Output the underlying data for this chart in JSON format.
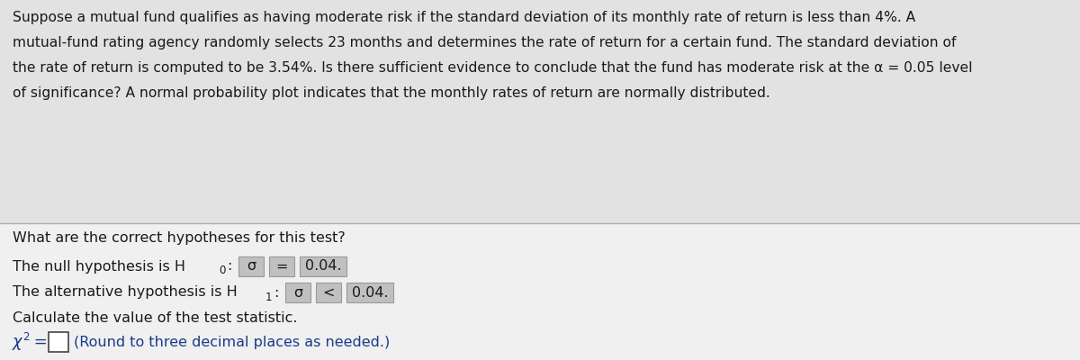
{
  "bg_top": "#e2e2e2",
  "bg_bottom": "#f0f0f0",
  "divider_color": "#b0b0b0",
  "text_black": "#1a1a1a",
  "text_blue": "#1a3a8a",
  "highlight_box": "#c0c0c0",
  "highlight_border": "#999999",
  "para_line1": "Suppose a mutual fund qualifies as having moderate risk if the standard deviation of its monthly rate of return is less than 4%. A",
  "para_line2": "mutual-fund rating agency randomly selects 23 months and determines the rate of return for a certain fund. The standard deviation of",
  "para_line3": "the rate of return is computed to be 3.54%. Is there sufficient evidence to conclude that the fund has moderate risk at the α = 0.05 level",
  "para_line4": "of significance? A normal probability plot indicates that the monthly rates of return are normally distributed.",
  "q1": "What are the correct hypotheses for this test?",
  "null_prefix": "The null hypothesis is H",
  "null_sub": "0",
  "null_sigma": "σ",
  "null_op": "=",
  "null_val": "0.04.",
  "alt_prefix": "The alternative hypothesis is H",
  "alt_sub": "1",
  "alt_sigma": "σ",
  "alt_op": "<",
  "alt_val": "0.04.",
  "q2": "Calculate the value of the test statistic.",
  "chi_prefix": "χ",
  "chi_note": "(Round to three decimal places as needed.)",
  "fontsize_para": 11.2,
  "fontsize_body": 11.5
}
